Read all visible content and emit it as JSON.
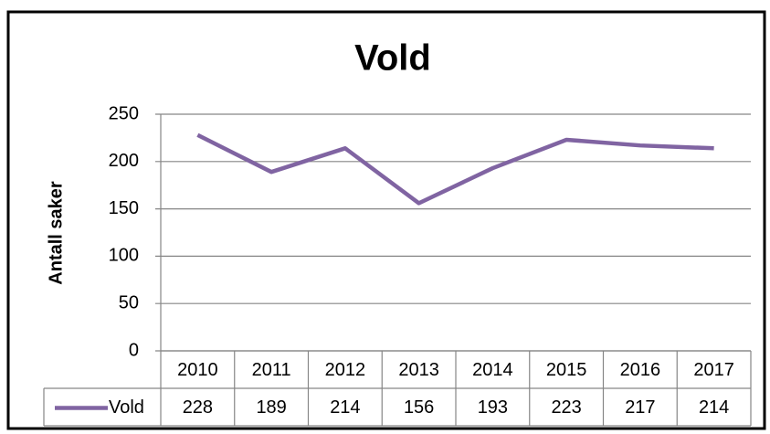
{
  "chart_data": {
    "type": "line",
    "title": "Vold",
    "y_label": "Antall saker",
    "categories": [
      "2010",
      "2011",
      "2012",
      "2013",
      "2014",
      "2015",
      "2016",
      "2017"
    ],
    "series": [
      {
        "name": "Vold",
        "color": "#8064a2",
        "values": [
          228,
          189,
          214,
          156,
          193,
          223,
          217,
          214
        ]
      }
    ],
    "ylim": [
      0,
      250
    ],
    "yticks": [
      0,
      50,
      100,
      150,
      200,
      250
    ],
    "grid": true,
    "data_table": true
  }
}
